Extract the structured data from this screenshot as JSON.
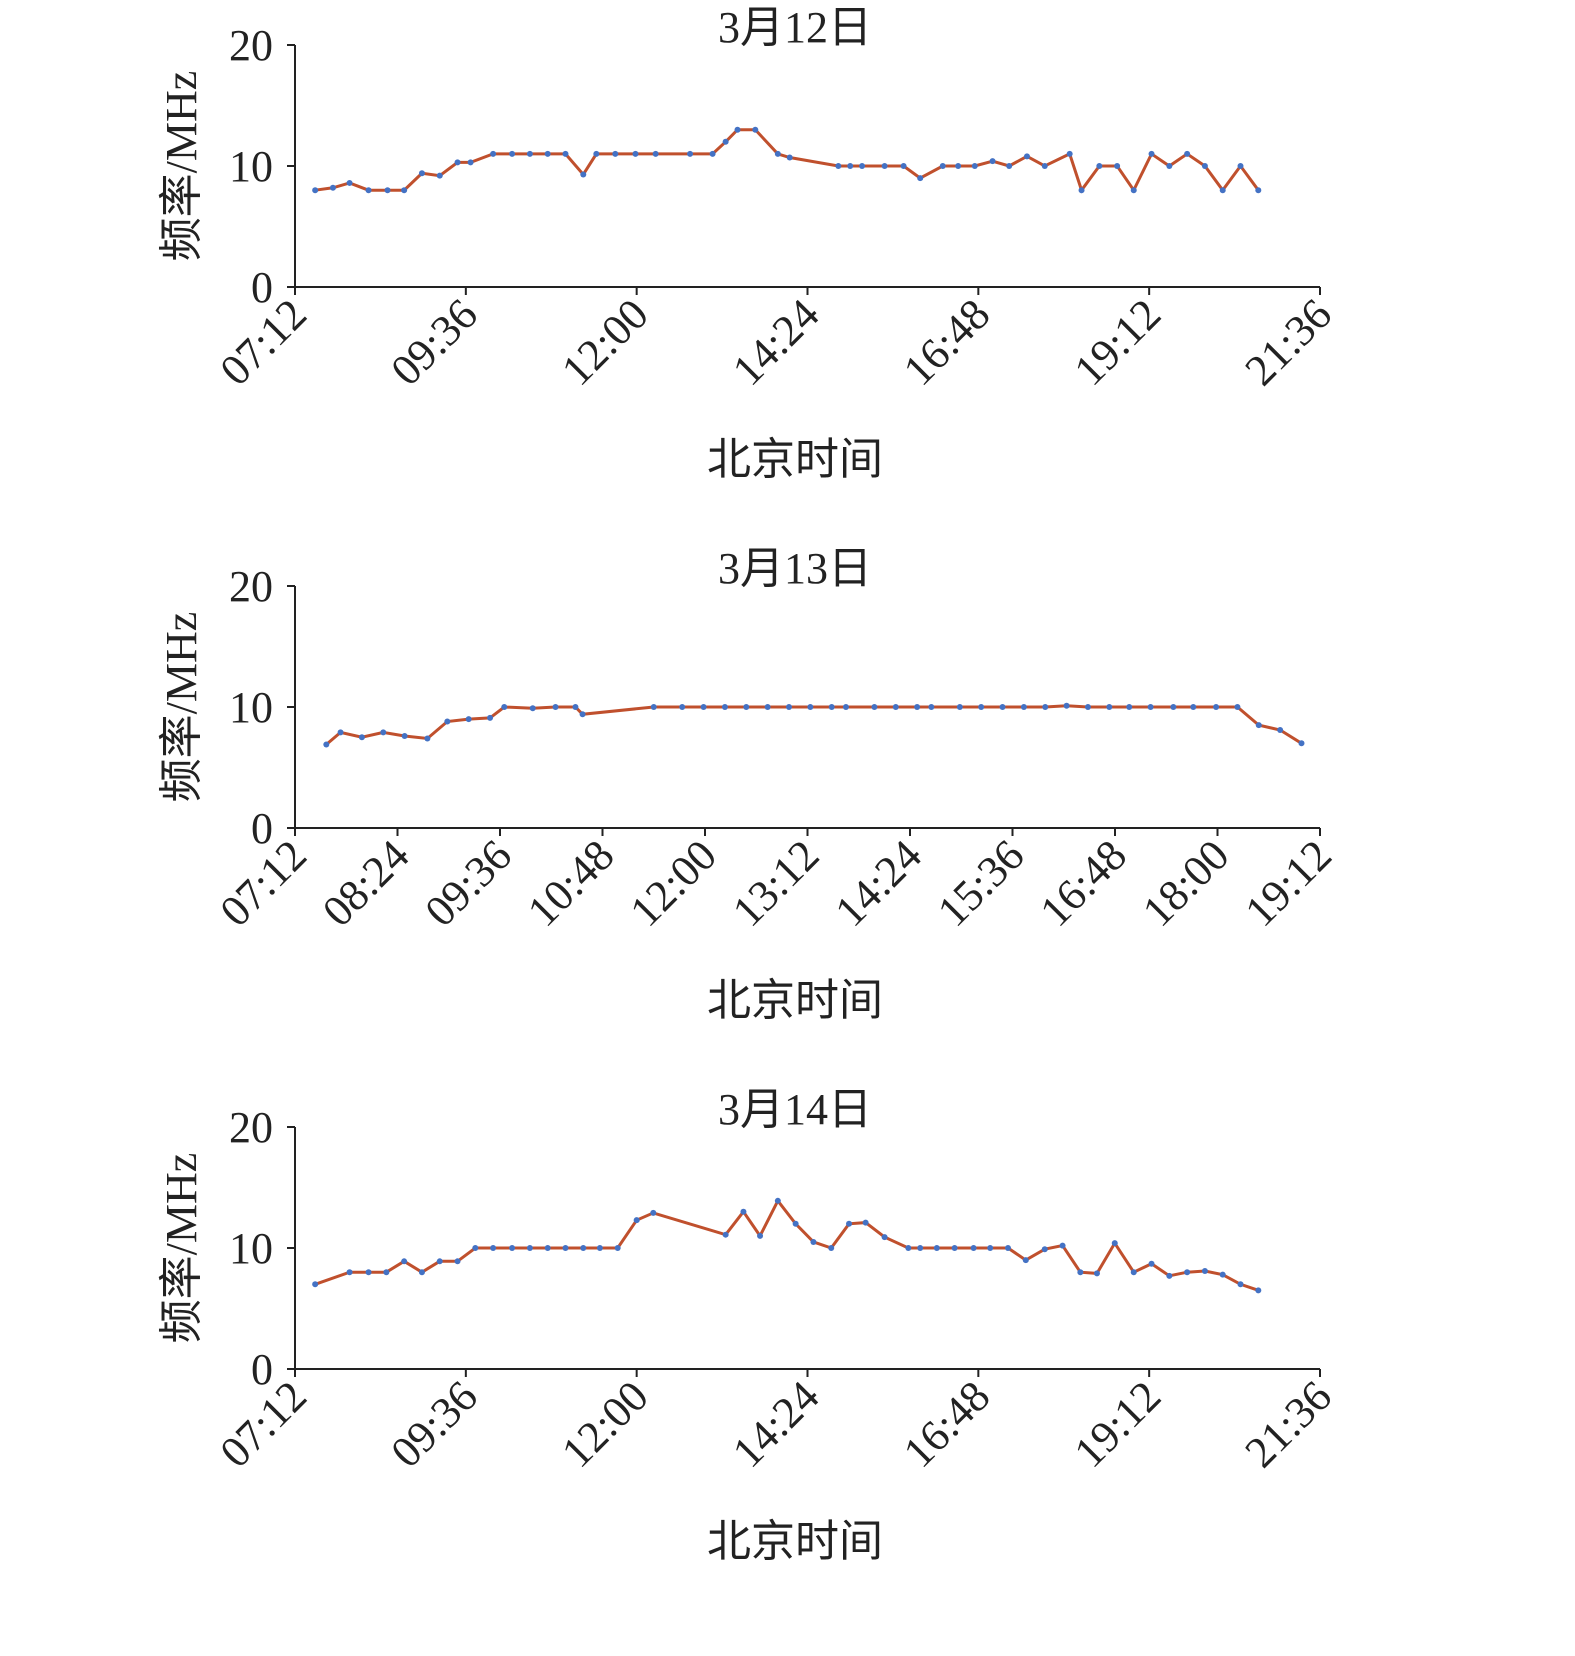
{
  "chart_data": [
    {
      "type": "line",
      "title": "3月12日",
      "x_label": "北京时间",
      "y_label": "频率/MHz",
      "color": "#c0502d",
      "marker_color": "#4472c4",
      "xlim": [
        "07:12",
        "21:36"
      ],
      "xticks": [
        "07:12",
        "09:36",
        "12:00",
        "14:24",
        "16:48",
        "19:12",
        "21:36"
      ],
      "ylim": [
        0,
        20
      ],
      "yticks": [
        0,
        10,
        20
      ],
      "x": [
        "07:29",
        "07:44",
        "07:58",
        "08:14",
        "08:30",
        "08:44",
        "08:59",
        "09:14",
        "09:29",
        "09:40",
        "09:59",
        "10:15",
        "10:30",
        "10:45",
        "11:00",
        "11:15",
        "11:26",
        "11:42",
        "11:59",
        "12:16",
        "12:45",
        "13:04",
        "13:15",
        "13:25",
        "13:40",
        "13:59",
        "14:09",
        "14:50",
        "15:00",
        "15:10",
        "15:29",
        "15:45",
        "15:59",
        "16:18",
        "16:31",
        "16:45",
        "17:00",
        "17:14",
        "17:29",
        "17:44",
        "18:05",
        "18:15",
        "18:30",
        "18:45",
        "18:59",
        "19:14",
        "19:29",
        "19:44",
        "19:59",
        "20:14",
        "20:29",
        "20:44"
      ],
      "values": [
        8,
        8.2,
        8.6,
        8,
        8,
        8,
        9.4,
        9.2,
        10.3,
        10.3,
        11,
        11,
        11,
        11,
        11,
        9.3,
        11,
        11,
        11,
        11,
        11,
        11,
        12,
        13,
        13,
        11,
        10.7,
        10,
        10,
        10,
        10,
        10,
        9,
        10,
        10,
        10,
        10.4,
        10,
        10.8,
        10,
        11,
        8,
        10,
        10,
        8,
        11,
        10,
        11,
        10,
        8,
        10,
        8
      ]
    },
    {
      "type": "line",
      "title": "3月13日",
      "x_label": "北京时间",
      "y_label": "频率/MHz",
      "color": "#c0502d",
      "marker_color": "#4472c4",
      "xlim": [
        "07:12",
        "19:12"
      ],
      "xticks": [
        "07:12",
        "08:24",
        "09:36",
        "10:48",
        "12:00",
        "13:12",
        "14:24",
        "15:36",
        "16:48",
        "18:00",
        "19:12"
      ],
      "ylim": [
        0,
        20
      ],
      "yticks": [
        0,
        10,
        20
      ],
      "x": [
        "07:34",
        "07:44",
        "07:59",
        "08:14",
        "08:29",
        "08:45",
        "08:59",
        "09:14",
        "09:29",
        "09:39",
        "09:59",
        "10:15",
        "10:29",
        "10:34",
        "11:24",
        "11:44",
        "11:59",
        "12:14",
        "12:29",
        "12:44",
        "12:59",
        "13:14",
        "13:29",
        "13:39",
        "13:59",
        "14:14",
        "14:29",
        "14:39",
        "14:59",
        "15:14",
        "15:29",
        "15:44",
        "15:59",
        "16:14",
        "16:29",
        "16:44",
        "16:58",
        "17:13",
        "17:29",
        "17:43",
        "17:59",
        "18:14",
        "18:29",
        "18:44",
        "18:59"
      ],
      "values": [
        6.9,
        7.9,
        7.5,
        7.9,
        7.6,
        7.4,
        8.8,
        9,
        9.1,
        10,
        9.9,
        10,
        10,
        9.4,
        10,
        10,
        10,
        10,
        10,
        10,
        10,
        10,
        10,
        10,
        10,
        10,
        10,
        10,
        10,
        10,
        10,
        10,
        10,
        10.1,
        10,
        10,
        10,
        10,
        10,
        10,
        10,
        10,
        8.5,
        8.1,
        7
      ]
    },
    {
      "type": "line",
      "title": "3月14日",
      "x_label": "北京时间",
      "y_label": "频率/MHz",
      "color": "#c0502d",
      "marker_color": "#4472c4",
      "xlim": [
        "07:12",
        "21:36"
      ],
      "xticks": [
        "07:12",
        "09:36",
        "12:00",
        "14:24",
        "16:48",
        "19:12",
        "21:36"
      ],
      "ylim": [
        0,
        20
      ],
      "yticks": [
        0,
        10,
        20
      ],
      "x": [
        "07:29",
        "07:58",
        "08:14",
        "08:29",
        "08:44",
        "08:59",
        "09:14",
        "09:29",
        "09:44",
        "09:59",
        "10:15",
        "10:30",
        "10:45",
        "11:00",
        "11:15",
        "11:29",
        "11:44",
        "12:00",
        "12:14",
        "13:15",
        "13:30",
        "13:44",
        "13:59",
        "14:14",
        "14:29",
        "14:44",
        "14:59",
        "15:13",
        "15:29",
        "15:49",
        "15:59",
        "16:13",
        "16:28",
        "16:44",
        "16:58",
        "17:13",
        "17:28",
        "17:44",
        "17:59",
        "18:14",
        "18:28",
        "18:43",
        "18:59",
        "19:14",
        "19:29",
        "19:44",
        "19:59",
        "20:14",
        "20:29",
        "20:44"
      ],
      "values": [
        7,
        8,
        8,
        8,
        8.9,
        8,
        8.9,
        8.9,
        10,
        10,
        10,
        10,
        10,
        10,
        10,
        10,
        10,
        12.3,
        12.9,
        11.1,
        13,
        11,
        13.9,
        12,
        10.5,
        10,
        12,
        12.1,
        10.9,
        10,
        10,
        10,
        10,
        10,
        10,
        10,
        9,
        9.9,
        10.2,
        8,
        7.9,
        10.4,
        8,
        8.7,
        7.7,
        8,
        8.1,
        7.8,
        7,
        6.5
      ]
    }
  ]
}
